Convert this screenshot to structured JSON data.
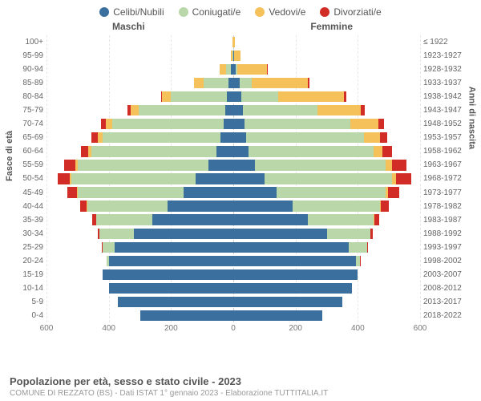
{
  "chart": {
    "type": "population_pyramid",
    "legend": [
      {
        "label": "Celibi/Nubili",
        "color": "#3b6f9e"
      },
      {
        "label": "Coniugati/e",
        "color": "#b9d7a8"
      },
      {
        "label": "Vedovi/e",
        "color": "#f4c15b"
      },
      {
        "label": "Divorziati/e",
        "color": "#d12d26"
      }
    ],
    "columns": {
      "left": "Maschi",
      "right": "Femmine"
    },
    "y_label_left": "Fasce di età",
    "y_label_right": "Anni di nascita",
    "xmax": 600,
    "xticks": [
      600,
      400,
      200,
      0,
      200,
      400,
      600
    ],
    "background_color": "#ffffff",
    "grid_color": "#e8e8e8",
    "center_line_color": "#cccccc",
    "tick_font_size": 10,
    "label_font_size": 11,
    "rows": [
      {
        "age": "100+",
        "birth": "≤ 1922",
        "m": [
          0,
          0,
          2,
          0
        ],
        "f": [
          0,
          0,
          5,
          0
        ]
      },
      {
        "age": "95-99",
        "birth": "1923-1927",
        "m": [
          1,
          1,
          6,
          0
        ],
        "f": [
          2,
          0,
          20,
          0
        ]
      },
      {
        "age": "90-94",
        "birth": "1928-1932",
        "m": [
          8,
          15,
          22,
          0
        ],
        "f": [
          8,
          5,
          95,
          2
        ]
      },
      {
        "age": "85-89",
        "birth": "1933-1937",
        "m": [
          15,
          80,
          30,
          2
        ],
        "f": [
          20,
          40,
          180,
          5
        ]
      },
      {
        "age": "80-84",
        "birth": "1938-1942",
        "m": [
          20,
          180,
          28,
          5
        ],
        "f": [
          25,
          120,
          210,
          8
        ]
      },
      {
        "age": "75-79",
        "birth": "1943-1947",
        "m": [
          25,
          280,
          25,
          10
        ],
        "f": [
          30,
          240,
          140,
          12
        ]
      },
      {
        "age": "70-74",
        "birth": "1948-1952",
        "m": [
          30,
          360,
          20,
          15
        ],
        "f": [
          35,
          340,
          90,
          18
        ]
      },
      {
        "age": "65-69",
        "birth": "1953-1957",
        "m": [
          40,
          380,
          15,
          20
        ],
        "f": [
          40,
          380,
          50,
          25
        ]
      },
      {
        "age": "60-64",
        "birth": "1958-1962",
        "m": [
          55,
          400,
          10,
          25
        ],
        "f": [
          50,
          400,
          30,
          30
        ]
      },
      {
        "age": "55-59",
        "birth": "1963-1967",
        "m": [
          80,
          420,
          8,
          35
        ],
        "f": [
          70,
          420,
          20,
          45
        ]
      },
      {
        "age": "50-54",
        "birth": "1968-1972",
        "m": [
          120,
          400,
          5,
          40
        ],
        "f": [
          100,
          410,
          12,
          50
        ]
      },
      {
        "age": "45-49",
        "birth": "1973-1977",
        "m": [
          160,
          340,
          3,
          30
        ],
        "f": [
          140,
          350,
          8,
          35
        ]
      },
      {
        "age": "40-44",
        "birth": "1978-1982",
        "m": [
          210,
          260,
          2,
          20
        ],
        "f": [
          190,
          280,
          5,
          25
        ]
      },
      {
        "age": "35-39",
        "birth": "1983-1987",
        "m": [
          260,
          180,
          1,
          12
        ],
        "f": [
          240,
          210,
          3,
          15
        ]
      },
      {
        "age": "30-34",
        "birth": "1988-1992",
        "m": [
          320,
          110,
          0,
          6
        ],
        "f": [
          300,
          140,
          1,
          8
        ]
      },
      {
        "age": "25-29",
        "birth": "1993-1997",
        "m": [
          380,
          40,
          0,
          2
        ],
        "f": [
          370,
          60,
          0,
          3
        ]
      },
      {
        "age": "20-24",
        "birth": "1998-2002",
        "m": [
          400,
          8,
          0,
          0
        ],
        "f": [
          395,
          12,
          0,
          1
        ]
      },
      {
        "age": "15-19",
        "birth": "2003-2007",
        "m": [
          420,
          0,
          0,
          0
        ],
        "f": [
          400,
          0,
          0,
          0
        ]
      },
      {
        "age": "10-14",
        "birth": "2008-2012",
        "m": [
          400,
          0,
          0,
          0
        ],
        "f": [
          380,
          0,
          0,
          0
        ]
      },
      {
        "age": "5-9",
        "birth": "2013-2017",
        "m": [
          370,
          0,
          0,
          0
        ],
        "f": [
          350,
          0,
          0,
          0
        ]
      },
      {
        "age": "0-4",
        "birth": "2018-2022",
        "m": [
          300,
          0,
          0,
          0
        ],
        "f": [
          285,
          0,
          0,
          0
        ]
      }
    ]
  },
  "footer": {
    "title": "Popolazione per età, sesso e stato civile - 2023",
    "subtitle": "COMUNE DI REZZATO (BS) - Dati ISTAT 1° gennaio 2023 - Elaborazione TUTTITALIA.IT"
  }
}
